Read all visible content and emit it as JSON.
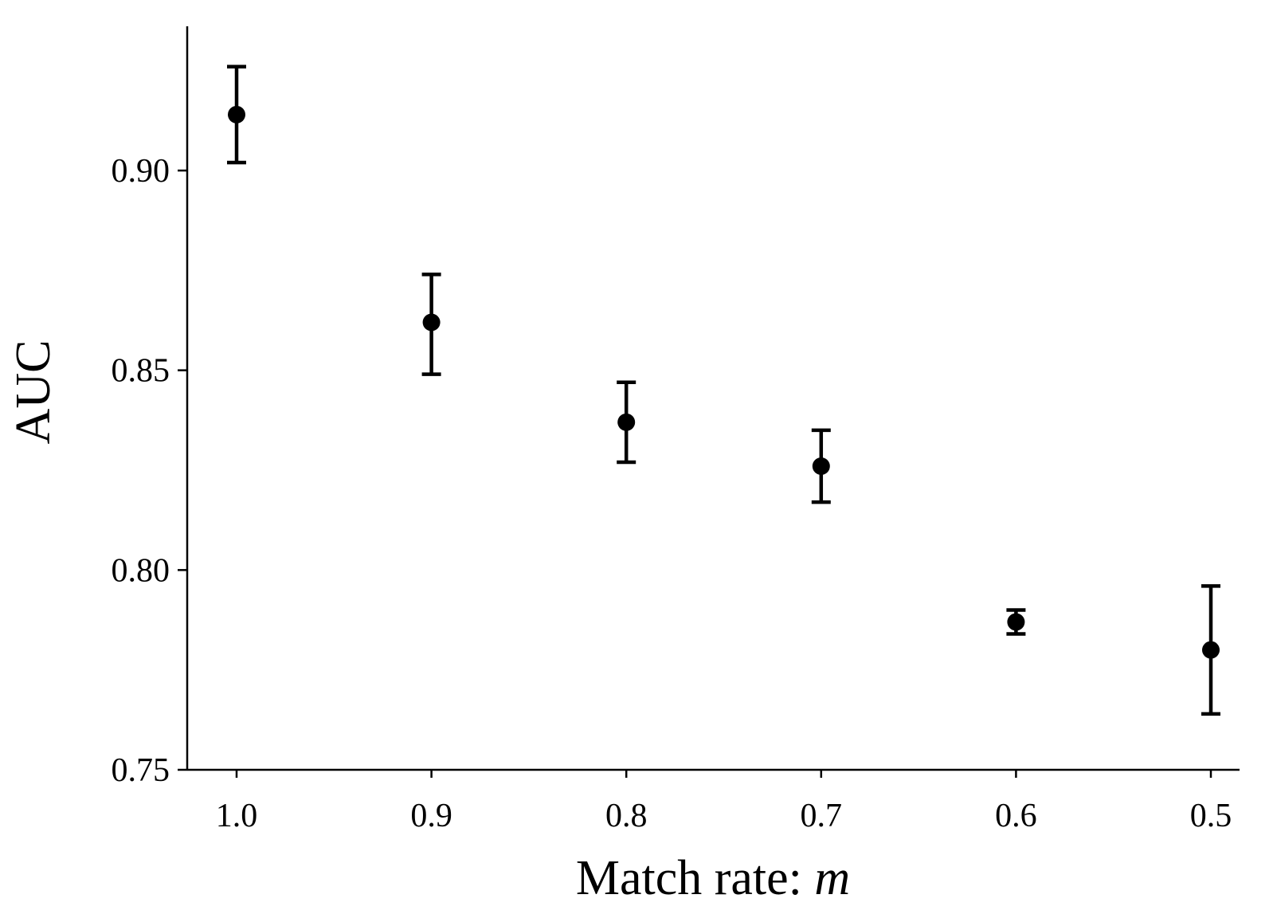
{
  "chart_data": {
    "type": "scatter",
    "title": "",
    "xlabel": "Match rate: ",
    "xlabel_var": "m",
    "ylabel": "AUC",
    "x_ticks": [
      "1.0",
      "0.9",
      "0.8",
      "0.7",
      "0.6",
      "0.5"
    ],
    "y_ticks": [
      "0.75",
      "0.80",
      "0.85",
      "0.90"
    ],
    "ylim": [
      0.75,
      0.938
    ],
    "x_reversed": true,
    "grid": false,
    "series": [
      {
        "x": [
          1.0,
          0.9,
          0.8,
          0.7,
          0.6,
          0.5
        ],
        "y": [
          0.914,
          0.862,
          0.837,
          0.826,
          0.787,
          0.78
        ],
        "err_low": [
          0.902,
          0.849,
          0.827,
          0.817,
          0.784,
          0.764
        ],
        "err_high": [
          0.926,
          0.874,
          0.847,
          0.835,
          0.79,
          0.796
        ]
      }
    ]
  }
}
